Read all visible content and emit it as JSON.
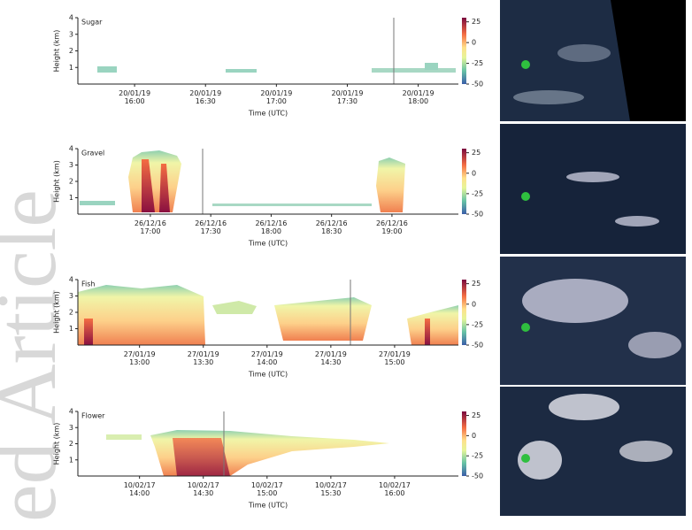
{
  "watermark": "ed Article",
  "chart_data": [
    {
      "type": "heatmap",
      "title": "Sugar",
      "ylabel": "Height (km)",
      "xlabel": "Time (UTC)",
      "ylim": [
        0,
        4
      ],
      "yticks": [
        1,
        2,
        3,
        4
      ],
      "xlim": [
        "20/01/19 15:36",
        "20/01/19 18:17"
      ],
      "xticks": [
        "20/01/19 16:00",
        "20/01/19 16:30",
        "20/01/19 17:00",
        "20/01/19 17:30",
        "20/01/19 18:00"
      ],
      "clim": [
        -50,
        30
      ],
      "cticks": [
        25,
        0,
        -25,
        -50
      ]
    },
    {
      "type": "heatmap",
      "title": "Gravel",
      "ylabel": "Height (km)",
      "xlabel": "Time (UTC)",
      "ylim": [
        0,
        4
      ],
      "yticks": [
        1,
        2,
        3,
        4
      ],
      "xlim": [
        "26/12/16 16:24",
        "26/12/16 19:33"
      ],
      "xticks": [
        "26/12/16 17:00",
        "26/12/16 17:30",
        "26/12/16 18:00",
        "26/12/16 18:30",
        "26/12/16 19:00"
      ],
      "clim": [
        -50,
        30
      ],
      "cticks": [
        25,
        0,
        -25,
        -50
      ]
    },
    {
      "type": "heatmap",
      "title": "Fish",
      "ylabel": "Height (km)",
      "xlabel": "Time (UTC)",
      "ylim": [
        0,
        4
      ],
      "yticks": [
        1,
        2,
        3,
        4
      ],
      "xlim": [
        "27/01/19 12:31",
        "27/01/19 15:30"
      ],
      "xticks": [
        "27/01/19 13:00",
        "27/01/19 13:30",
        "27/01/19 14:00",
        "27/01/19 14:30",
        "27/01/19 15:00"
      ],
      "clim": [
        -50,
        30
      ],
      "cticks": [
        25,
        0,
        -25,
        -50
      ]
    },
    {
      "type": "heatmap",
      "title": "Flower",
      "ylabel": "Height (km)",
      "xlabel": "Time (UTC)",
      "ylim": [
        0,
        4
      ],
      "yticks": [
        1,
        2,
        3,
        4
      ],
      "xlim": [
        "10/02/17 13:31",
        "10/02/17 16:30"
      ],
      "xticks": [
        "10/02/17 14:00",
        "10/02/17 14:30",
        "10/02/17 15:00",
        "10/02/17 15:30",
        "10/02/17 16:00"
      ],
      "clim": [
        -50,
        30
      ],
      "cticks": [
        25,
        0,
        -25,
        -50
      ]
    }
  ]
}
